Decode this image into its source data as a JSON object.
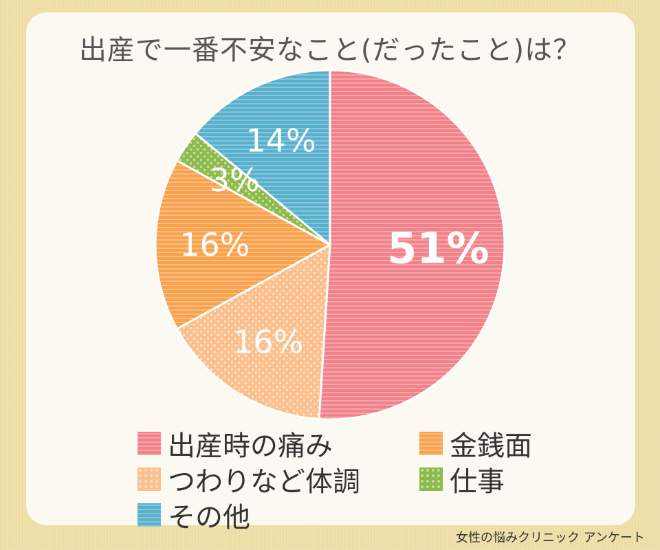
{
  "chart_data": {
    "type": "pie",
    "title": "出産で一番不安なこと(だったこと)は？",
    "slices": [
      {
        "label": "出産時の痛み",
        "value": 51,
        "value_label": "51%",
        "color": "#f2828a",
        "pattern": "stripes",
        "label_bold": true
      },
      {
        "label": "つわりなど体調",
        "value": 16,
        "value_label": "16%",
        "color": "#fbc08e",
        "pattern": "dots",
        "label_bold": false
      },
      {
        "label": "金銭面",
        "value": 16,
        "value_label": "16%",
        "color": "#f9a24e",
        "pattern": "stripes",
        "label_bold": false
      },
      {
        "label": "仕事",
        "value": 3,
        "value_label": "3%",
        "color": "#8dbb4c",
        "pattern": "dots",
        "label_bold": false
      },
      {
        "label": "その他",
        "value": 14,
        "value_label": "14%",
        "color": "#58b0cc",
        "pattern": "stripes",
        "label_bold": false
      }
    ],
    "legend_order": [
      0,
      2,
      1,
      3,
      4
    ],
    "legend_placement": "bottom",
    "start_angle": "12 o'clock",
    "direction": "clockwise"
  },
  "source": "女性の悩みクリニック アンケート"
}
